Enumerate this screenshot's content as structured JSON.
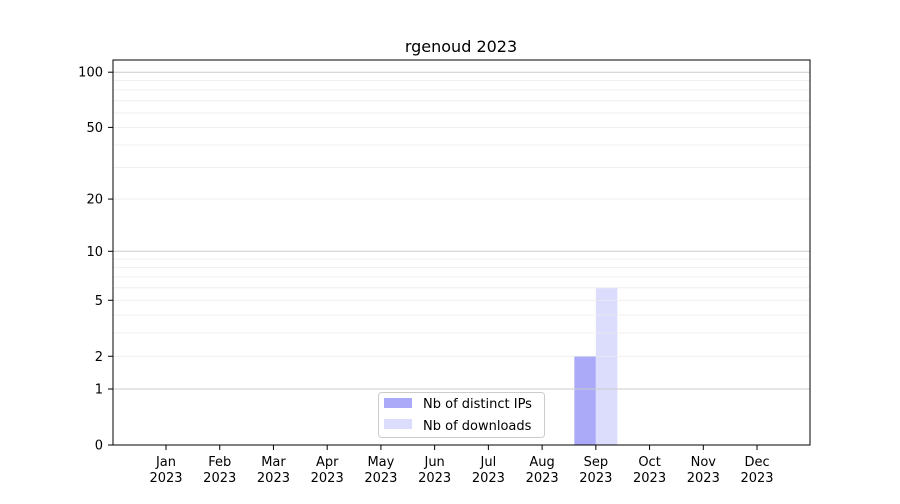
{
  "chart_data": {
    "type": "bar",
    "title": "rgenoud 2023",
    "xlabel": "",
    "ylabel": "",
    "y_scale": "symlog (log10(1+y))",
    "ylim": [
      0,
      116
    ],
    "yticks": [
      0,
      1,
      2,
      5,
      10,
      20,
      50,
      100
    ],
    "ytick_labels": [
      "0",
      "1",
      "2",
      "5",
      "10",
      "20",
      "50",
      "100"
    ],
    "grid": true,
    "categories": [
      "Jan\n2023",
      "Feb\n2023",
      "Mar\n2023",
      "Apr\n2023",
      "May\n2023",
      "Jun\n2023",
      "Jul\n2023",
      "Aug\n2023",
      "Sep\n2023",
      "Oct\n2023",
      "Nov\n2023",
      "Dec\n2023"
    ],
    "tick_labels": [
      {
        "month": "Jan",
        "year": "2023"
      },
      {
        "month": "Feb",
        "year": "2023"
      },
      {
        "month": "Mar",
        "year": "2023"
      },
      {
        "month": "Apr",
        "year": "2023"
      },
      {
        "month": "May",
        "year": "2023"
      },
      {
        "month": "Jun",
        "year": "2023"
      },
      {
        "month": "Jul",
        "year": "2023"
      },
      {
        "month": "Aug",
        "year": "2023"
      },
      {
        "month": "Sep",
        "year": "2023"
      },
      {
        "month": "Oct",
        "year": "2023"
      },
      {
        "month": "Nov",
        "year": "2023"
      },
      {
        "month": "Dec",
        "year": "2023"
      }
    ],
    "series": [
      {
        "name": "Nb of distinct IPs",
        "color": "#aaaaf8",
        "values": [
          0,
          0,
          0,
          0,
          0,
          0,
          0,
          0,
          2,
          0,
          0,
          0
        ]
      },
      {
        "name": "Nb of downloads",
        "color": "#dcdcfc",
        "values": [
          0,
          0,
          0,
          0,
          0,
          0,
          0,
          0,
          6,
          0,
          0,
          0
        ]
      }
    ],
    "legend_position": "lower center"
  }
}
